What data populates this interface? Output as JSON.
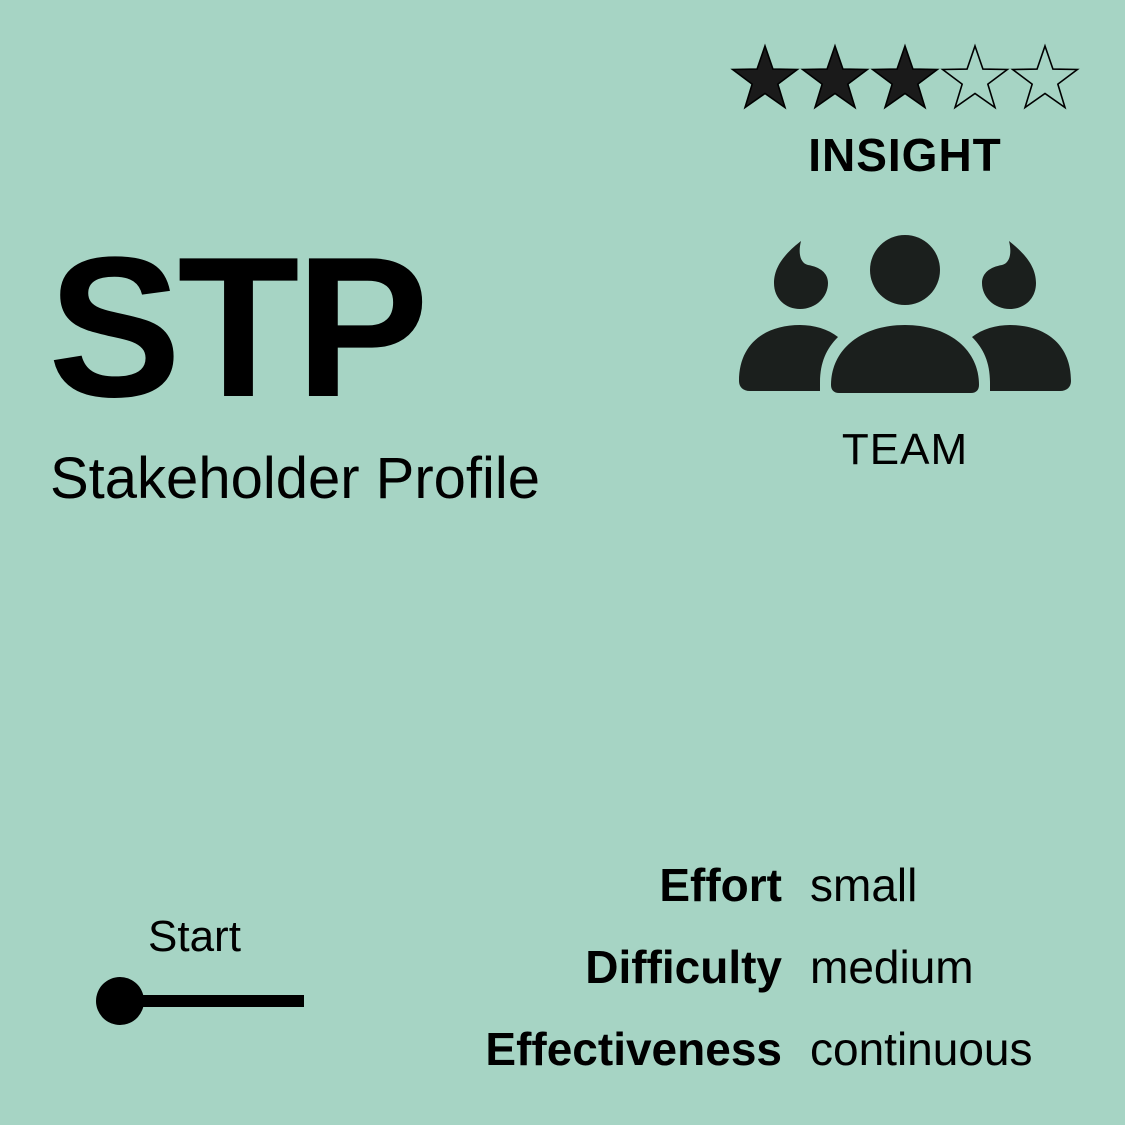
{
  "rating": {
    "value": 3,
    "max": 5,
    "filled_color": "#1a1a1a"
  },
  "category": "INSIGHT",
  "team": {
    "icon": "team-icon",
    "label": "TEAM"
  },
  "card": {
    "code": "STP",
    "title": "Stakeholder Profile"
  },
  "timeline": {
    "label": "Start",
    "icon": "start-timeline-icon"
  },
  "metrics": [
    {
      "key": "Effort",
      "value": "small"
    },
    {
      "key": "Difficulty",
      "value": "medium"
    },
    {
      "key": "Effectiveness",
      "value": "continuous"
    }
  ],
  "colors": {
    "background": "#a6d4c4",
    "icon": "#1b1f1d"
  }
}
